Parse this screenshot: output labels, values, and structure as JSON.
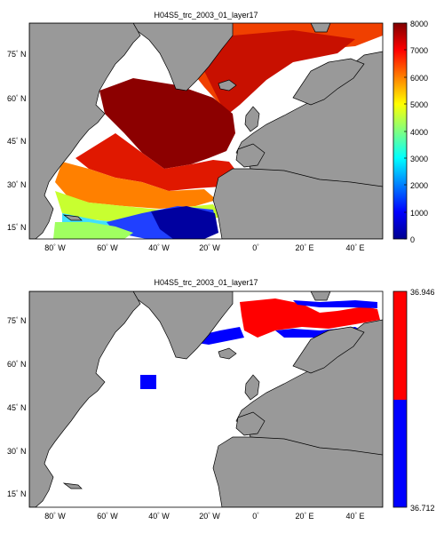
{
  "panels": [
    {
      "title": "H04S5_trc_2003_01_layer17",
      "lat_labels": [
        "75",
        "60",
        "45",
        "30",
        "15"
      ],
      "lon_labels": [
        "80",
        "60",
        "40",
        "20",
        "0",
        "20",
        "40"
      ],
      "colorbar": {
        "tick_labels": [
          "8000",
          "7000",
          "6000",
          "5000",
          "4000",
          "3000",
          "2000",
          "1000",
          "0"
        ],
        "colormap": "jet",
        "range": [
          0,
          8000
        ]
      }
    },
    {
      "title": "H04S5_trc_2003_01_layer17",
      "lat_labels": [
        "75",
        "60",
        "45",
        "30",
        "15"
      ],
      "lon_labels": [
        "80",
        "60",
        "40",
        "20",
        "0",
        "20",
        "40"
      ],
      "colorbar": {
        "tick_labels": [
          "36.946",
          "36.712"
        ],
        "colors": [
          "#ff0000",
          "#0000ff"
        ]
      }
    }
  ],
  "axis_units": {
    "north": "N",
    "west": "W",
    "east": "E"
  },
  "colors": {
    "land": "#999999",
    "ocean": "#ffffff",
    "coast": "#000000"
  }
}
